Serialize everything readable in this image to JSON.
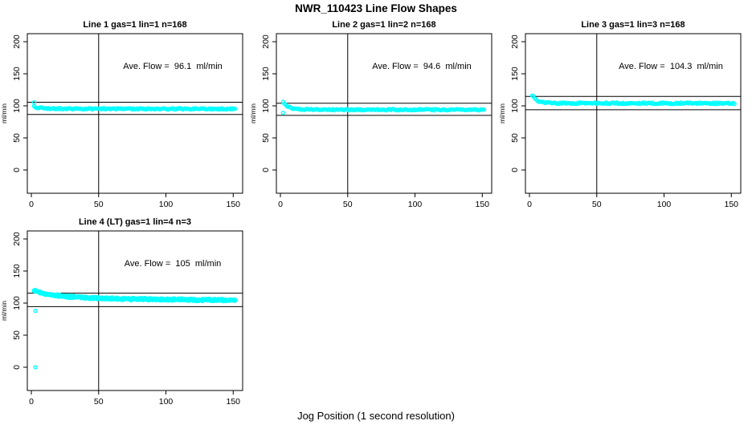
{
  "page": {
    "title": "NWR_110423  Line Flow Shapes",
    "xlabel": "Jog Position (1 second resolution)"
  },
  "style": {
    "point_color": "#00FFFF",
    "axis_color": "#000000",
    "background": "#FFFFFF"
  },
  "axes": {
    "ylabel": "ml/min",
    "x_ticks": [
      0,
      50,
      100,
      150
    ],
    "y_ticks": [
      0,
      50,
      100,
      150,
      200
    ],
    "xlim": [
      -3,
      157
    ],
    "ylim": [
      -36.25,
      212.5
    ],
    "vline_x": 50
  },
  "chart_data": [
    {
      "type": "scatter",
      "title": "Line 1 gas=1 lin=1 n=168",
      "annotation": "Ave. Flow =  96.1  ml/min",
      "ave_flow": 96.1,
      "n": 168,
      "ref_lines_y": [
        105.7,
        86.5
      ],
      "outliers": [
        [
          2,
          105.5
        ]
      ],
      "band": {
        "anchors": [
          [
            2,
            99
          ],
          [
            4,
            97.5
          ],
          [
            8,
            96.5
          ],
          [
            15,
            96
          ],
          [
            30,
            95.5
          ],
          [
            60,
            95.4
          ],
          [
            152,
            95.3
          ]
        ],
        "x_start": 2,
        "x_end": 152,
        "step": 0.9,
        "jitter": 1.1,
        "passes": 1,
        "pass_offset": 0,
        "seed": 11
      }
    },
    {
      "type": "scatter",
      "title": "Line 2 gas=1 lin=2 n=168",
      "annotation": "Ave. Flow =  94.6  ml/min",
      "ave_flow": 94.6,
      "n": 168,
      "ref_lines_y": [
        104.1,
        85.1
      ],
      "outliers": [
        [
          2,
          89
        ]
      ],
      "band": {
        "anchors": [
          [
            2,
            106
          ],
          [
            3,
            103
          ],
          [
            5,
            99.5
          ],
          [
            8,
            96.5
          ],
          [
            12,
            95
          ],
          [
            20,
            94.3
          ],
          [
            60,
            94
          ],
          [
            152,
            94
          ]
        ],
        "x_start": 2,
        "x_end": 152,
        "step": 0.9,
        "jitter": 1.0,
        "passes": 1,
        "pass_offset": 0,
        "seed": 22
      }
    },
    {
      "type": "scatter",
      "title": "Line 3 gas=1 lin=3 n=168",
      "annotation": "Ave. Flow =  104.3  ml/min",
      "ave_flow": 104.3,
      "n": 168,
      "ref_lines_y": [
        114.7,
        93.9
      ],
      "outliers": [],
      "band": {
        "anchors": [
          [
            2,
            116
          ],
          [
            4,
            112
          ],
          [
            6,
            108
          ],
          [
            9,
            105.5
          ],
          [
            15,
            104.5
          ],
          [
            30,
            104.2
          ],
          [
            152,
            104
          ]
        ],
        "x_start": 2,
        "x_end": 153,
        "step": 0.9,
        "jitter": 1.2,
        "passes": 1,
        "pass_offset": 0,
        "seed": 33
      }
    },
    {
      "type": "scatter",
      "title": "Line 4 (LT) gas=1 lin=4 n=3",
      "annotation": "Ave. Flow =  105  ml/min",
      "ave_flow": 105,
      "n": 3,
      "ref_lines_y": [
        115.5,
        94.5
      ],
      "outliers": [
        [
          3,
          88
        ],
        [
          3,
          0
        ]
      ],
      "band": {
        "anchors": [
          [
            2,
            120
          ],
          [
            5,
            117.5
          ],
          [
            10,
            114.5
          ],
          [
            15,
            112.5
          ],
          [
            25,
            110.5
          ],
          [
            40,
            108.5
          ],
          [
            60,
            107
          ],
          [
            80,
            106
          ],
          [
            100,
            105.5
          ],
          [
            130,
            105
          ],
          [
            152,
            104.5
          ]
        ],
        "x_start": 2,
        "x_end": 152,
        "step": 0.9,
        "jitter": 1.3,
        "passes": 3,
        "pass_offset": 0.7,
        "seed": 44
      }
    }
  ]
}
